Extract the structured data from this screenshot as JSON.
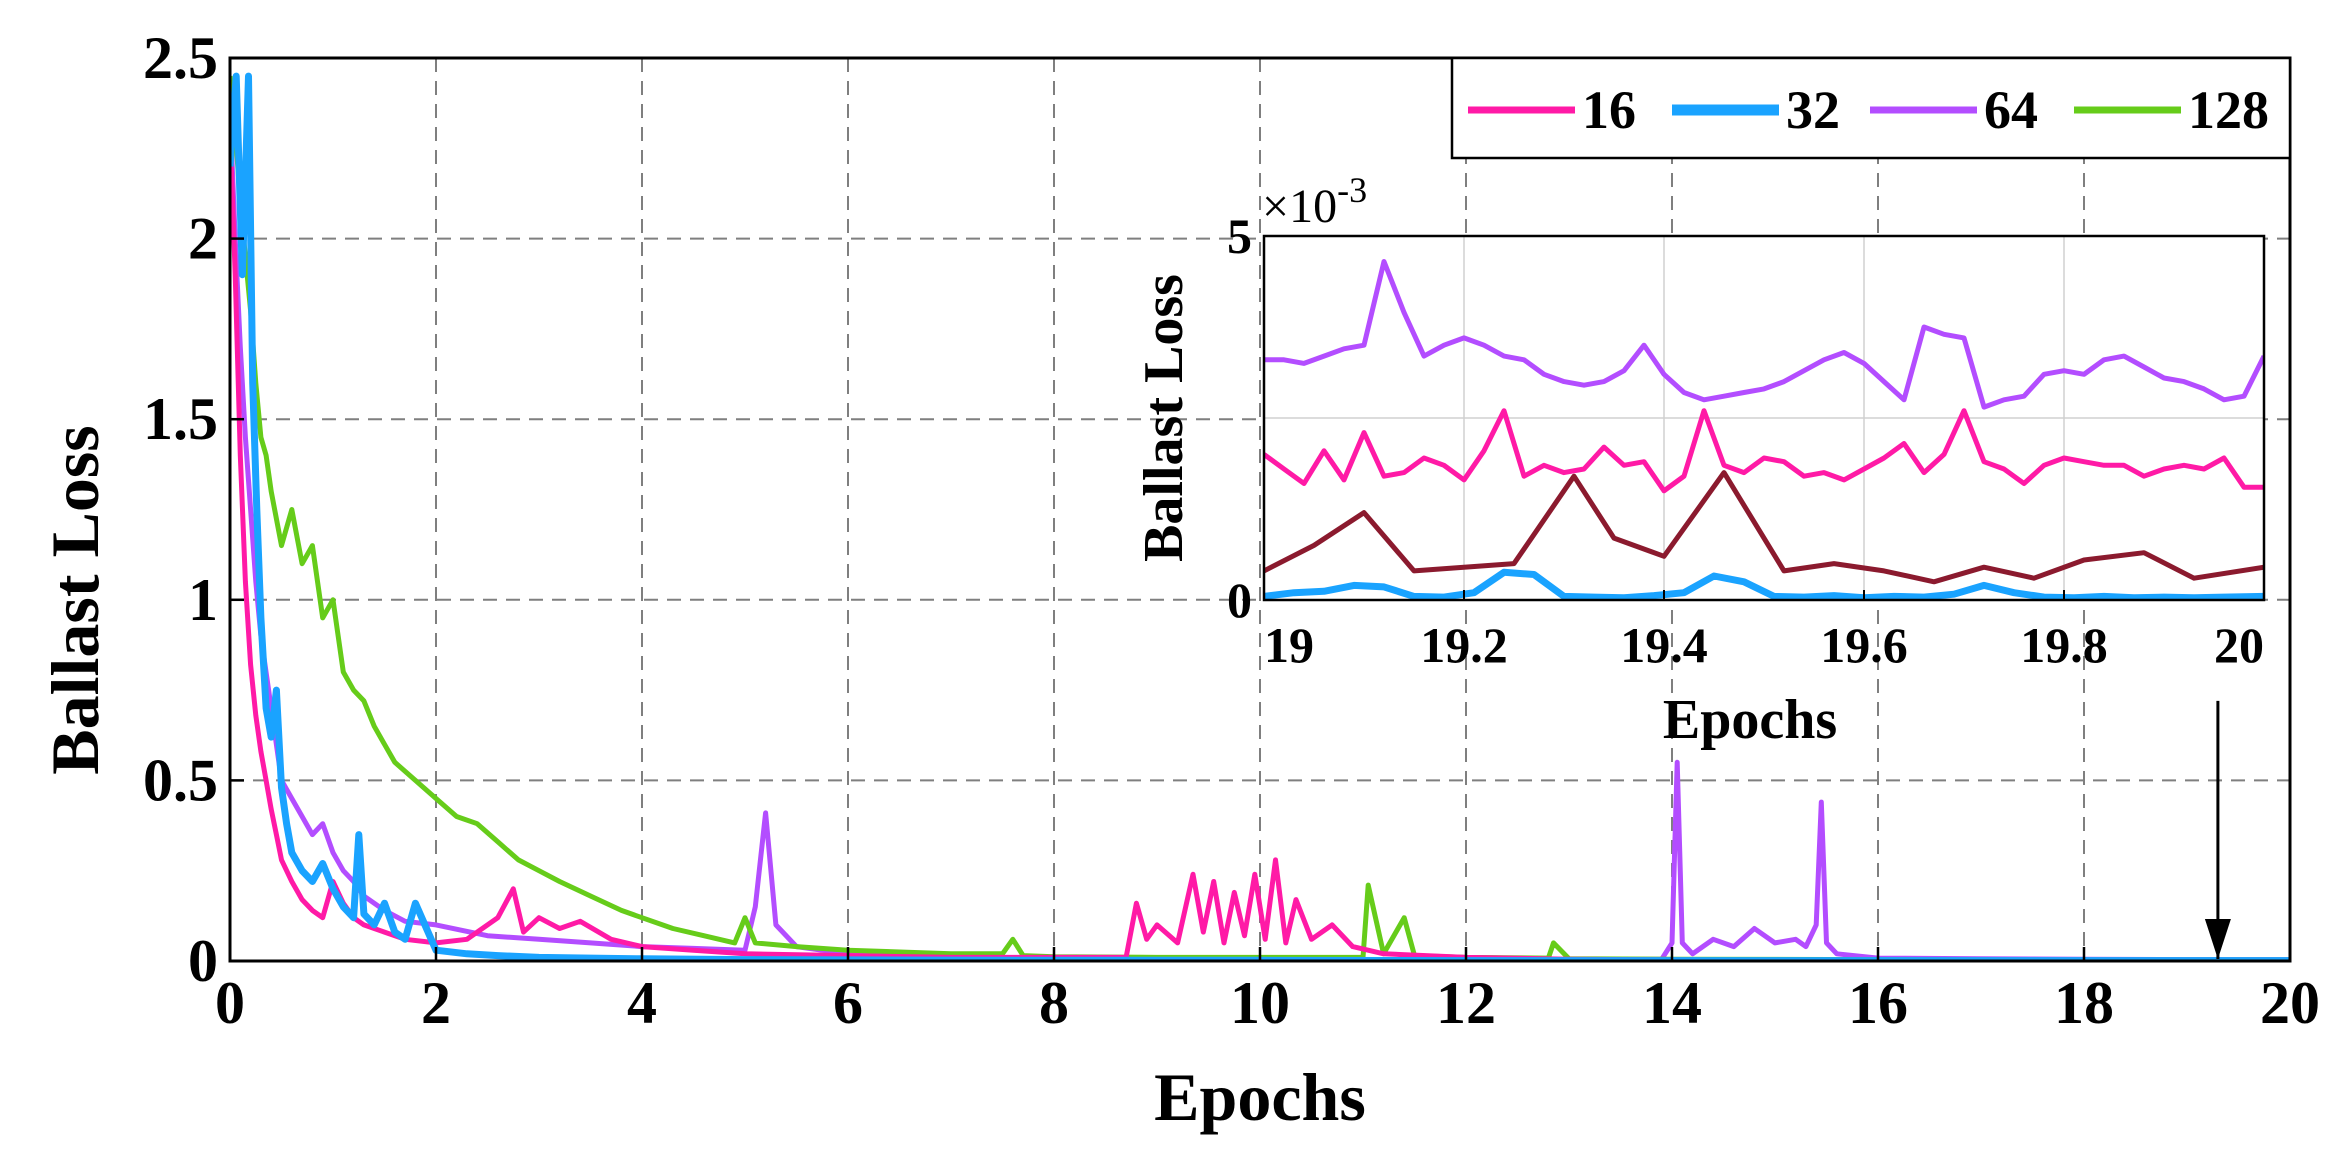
{
  "chart_data": [
    {
      "type": "line",
      "title": "",
      "xlabel": "Epochs",
      "ylabel": "Ballast Loss",
      "xlim": [
        0,
        20
      ],
      "ylim": [
        0,
        2.5
      ],
      "x_ticks": [
        "0",
        "2",
        "4",
        "6",
        "8",
        "10",
        "12",
        "14",
        "16",
        "18",
        "20"
      ],
      "y_ticks": [
        "0",
        "0.5",
        "1",
        "1.5",
        "2",
        "2.5"
      ],
      "grid": true,
      "legend_position": "top-right",
      "series": [
        {
          "name": "16",
          "color": "#ff1aa6",
          "x": [
            0,
            0.05,
            0.1,
            0.15,
            0.2,
            0.25,
            0.3,
            0.35,
            0.4,
            0.45,
            0.5,
            0.6,
            0.7,
            0.8,
            0.9,
            1.0,
            1.1,
            1.2,
            1.3,
            1.5,
            1.7,
            2.0,
            2.3,
            2.6,
            2.75,
            2.85,
            3.0,
            3.2,
            3.4,
            3.7,
            4.0,
            4.5,
            5.0,
            6.0,
            7.0,
            8.0,
            8.7,
            8.8,
            8.9,
            9.0,
            9.2,
            9.35,
            9.45,
            9.55,
            9.65,
            9.75,
            9.85,
            9.95,
            10.05,
            10.15,
            10.25,
            10.35,
            10.5,
            10.7,
            10.9,
            11.2,
            12.0,
            13.0,
            14.0,
            15.0,
            16.0,
            17.0,
            18.0,
            19.0,
            20.0
          ],
          "y": [
            2.3,
            1.9,
            1.4,
            1.05,
            0.82,
            0.68,
            0.58,
            0.5,
            0.42,
            0.35,
            0.28,
            0.22,
            0.17,
            0.14,
            0.12,
            0.22,
            0.16,
            0.12,
            0.1,
            0.08,
            0.06,
            0.05,
            0.06,
            0.12,
            0.2,
            0.08,
            0.12,
            0.09,
            0.11,
            0.06,
            0.04,
            0.03,
            0.02,
            0.015,
            0.01,
            0.01,
            0.01,
            0.16,
            0.06,
            0.1,
            0.05,
            0.24,
            0.08,
            0.22,
            0.05,
            0.19,
            0.07,
            0.24,
            0.06,
            0.28,
            0.05,
            0.17,
            0.06,
            0.1,
            0.04,
            0.02,
            0.01,
            0.005,
            0.003,
            0.002,
            0.002,
            0.002,
            0.002,
            0.002,
            0.002
          ]
        },
        {
          "name": "32",
          "color": "#1aa3ff",
          "x": [
            0,
            0.06,
            0.12,
            0.18,
            0.22,
            0.26,
            0.3,
            0.35,
            0.4,
            0.45,
            0.5,
            0.55,
            0.6,
            0.7,
            0.8,
            0.9,
            1.0,
            1.1,
            1.2,
            1.25,
            1.3,
            1.4,
            1.5,
            1.6,
            1.7,
            1.8,
            2.0,
            2.3,
            2.6,
            3.0,
            3.5,
            4.0,
            5.0,
            6.0,
            8.0,
            10.0,
            12.0,
            14.0,
            16.0,
            18.0,
            20.0
          ],
          "y": [
            2.2,
            2.45,
            1.9,
            2.45,
            1.6,
            1.25,
            0.95,
            0.7,
            0.62,
            0.75,
            0.48,
            0.38,
            0.3,
            0.25,
            0.22,
            0.27,
            0.2,
            0.15,
            0.12,
            0.35,
            0.13,
            0.1,
            0.16,
            0.08,
            0.06,
            0.16,
            0.03,
            0.02,
            0.015,
            0.01,
            0.008,
            0.006,
            0.004,
            0.003,
            0.002,
            0.002,
            0.001,
            0.001,
            0.001,
            0.001,
            0.001
          ]
        },
        {
          "name": "64",
          "color": "#b34dff",
          "x": [
            0,
            0.05,
            0.1,
            0.15,
            0.2,
            0.25,
            0.3,
            0.4,
            0.5,
            0.6,
            0.7,
            0.8,
            0.9,
            1.0,
            1.1,
            1.2,
            1.3,
            1.5,
            1.7,
            2.0,
            2.5,
            3.0,
            3.5,
            4.0,
            4.5,
            5.0,
            5.1,
            5.2,
            5.3,
            5.5,
            6.0,
            7.0,
            8.0,
            9.0,
            10.0,
            11.0,
            12.0,
            13.0,
            13.9,
            14.0,
            14.05,
            14.1,
            14.2,
            14.4,
            14.6,
            14.8,
            15.0,
            15.2,
            15.3,
            15.4,
            15.45,
            15.5,
            15.6,
            16.0,
            17.0,
            18.0,
            19.0,
            20.0
          ],
          "y": [
            2.35,
            2.0,
            1.7,
            1.45,
            1.25,
            1.05,
            0.9,
            0.7,
            0.5,
            0.45,
            0.4,
            0.35,
            0.38,
            0.3,
            0.25,
            0.22,
            0.18,
            0.14,
            0.11,
            0.1,
            0.07,
            0.06,
            0.05,
            0.04,
            0.035,
            0.03,
            0.15,
            0.41,
            0.1,
            0.04,
            0.02,
            0.01,
            0.008,
            0.006,
            0.005,
            0.004,
            0.004,
            0.004,
            0.005,
            0.05,
            0.55,
            0.05,
            0.02,
            0.06,
            0.04,
            0.09,
            0.05,
            0.06,
            0.04,
            0.1,
            0.44,
            0.05,
            0.02,
            0.008,
            0.006,
            0.005,
            0.004,
            0.004
          ]
        },
        {
          "name": "128",
          "color": "#66cc1a",
          "x": [
            0,
            0.05,
            0.1,
            0.15,
            0.2,
            0.25,
            0.3,
            0.35,
            0.4,
            0.5,
            0.6,
            0.7,
            0.8,
            0.9,
            1.0,
            1.1,
            1.2,
            1.3,
            1.4,
            1.5,
            1.6,
            1.8,
            2.0,
            2.2,
            2.4,
            2.6,
            2.8,
            3.0,
            3.2,
            3.5,
            3.8,
            4.0,
            4.3,
            4.6,
            4.9,
            5.0,
            5.1,
            5.5,
            6.0,
            7.0,
            7.5,
            7.6,
            7.7,
            8.0,
            9.0,
            10.0,
            10.9,
            11.0,
            11.05,
            11.2,
            11.4,
            11.5,
            12.0,
            12.8,
            12.85,
            13.0,
            14.0,
            16.0,
            18.0,
            20.0
          ],
          "y": [
            2.45,
            2.3,
            2.1,
            1.95,
            1.8,
            1.6,
            1.45,
            1.4,
            1.3,
            1.15,
            1.25,
            1.1,
            1.15,
            0.95,
            1.0,
            0.8,
            0.75,
            0.72,
            0.65,
            0.6,
            0.55,
            0.5,
            0.45,
            0.4,
            0.38,
            0.33,
            0.28,
            0.25,
            0.22,
            0.18,
            0.14,
            0.12,
            0.09,
            0.07,
            0.05,
            0.12,
            0.05,
            0.04,
            0.03,
            0.02,
            0.02,
            0.06,
            0.015,
            0.012,
            0.01,
            0.01,
            0.01,
            0.01,
            0.21,
            0.02,
            0.12,
            0.015,
            0.01,
            0.008,
            0.05,
            0.006,
            0.005,
            0.004,
            0.003,
            0.003
          ]
        }
      ],
      "annotation_arrow": {
        "x": 19.3,
        "y_from": 0.72,
        "y_to": 0.0
      }
    },
    {
      "type": "line",
      "title": "",
      "xlabel": "Epochs",
      "ylabel": "Ballast Loss",
      "scale_label": "×10-3",
      "scale_prefix": "×10",
      "scale_exponent": "-3",
      "xlim": [
        19,
        20
      ],
      "ylim": [
        0,
        5
      ],
      "x_ticks": [
        "19",
        "19.2",
        "19.4",
        "19.6",
        "19.8",
        "20"
      ],
      "y_ticks": [
        "0",
        "5"
      ],
      "grid": true,
      "series": [
        {
          "name": "16",
          "color": "#ff1aa6",
          "x": [
            19.0,
            19.02,
            19.04,
            19.06,
            19.08,
            19.1,
            19.12,
            19.14,
            19.16,
            19.18,
            19.2,
            19.22,
            19.24,
            19.26,
            19.28,
            19.3,
            19.32,
            19.34,
            19.36,
            19.38,
            19.4,
            19.42,
            19.44,
            19.46,
            19.48,
            19.5,
            19.52,
            19.54,
            19.56,
            19.58,
            19.6,
            19.62,
            19.64,
            19.66,
            19.68,
            19.7,
            19.72,
            19.74,
            19.76,
            19.78,
            19.8,
            19.82,
            19.84,
            19.86,
            19.88,
            19.9,
            19.92,
            19.94,
            19.96,
            19.98,
            20.0
          ],
          "y": [
            2.0,
            1.8,
            1.6,
            2.05,
            1.65,
            2.3,
            1.7,
            1.75,
            1.95,
            1.85,
            1.65,
            2.05,
            2.6,
            1.7,
            1.85,
            1.75,
            1.8,
            2.1,
            1.85,
            1.9,
            1.5,
            1.7,
            2.6,
            1.85,
            1.75,
            1.95,
            1.9,
            1.7,
            1.75,
            1.65,
            1.8,
            1.95,
            2.15,
            1.75,
            2.0,
            2.6,
            1.9,
            1.8,
            1.6,
            1.85,
            1.95,
            1.9,
            1.85,
            1.85,
            1.7,
            1.8,
            1.85,
            1.8,
            1.95,
            1.55,
            1.55
          ]
        },
        {
          "name": "32",
          "color": "#1aa3ff",
          "x": [
            19.0,
            19.03,
            19.06,
            19.09,
            19.12,
            19.15,
            19.18,
            19.21,
            19.24,
            19.27,
            19.3,
            19.33,
            19.36,
            19.39,
            19.42,
            19.45,
            19.48,
            19.51,
            19.54,
            19.57,
            19.6,
            19.63,
            19.66,
            19.69,
            19.72,
            19.75,
            19.78,
            19.81,
            19.84,
            19.87,
            19.9,
            19.93,
            19.96,
            20.0
          ],
          "y": [
            0.05,
            0.1,
            0.12,
            0.2,
            0.18,
            0.05,
            0.04,
            0.1,
            0.38,
            0.35,
            0.05,
            0.04,
            0.03,
            0.06,
            0.1,
            0.33,
            0.25,
            0.05,
            0.04,
            0.06,
            0.03,
            0.05,
            0.04,
            0.08,
            0.2,
            0.1,
            0.04,
            0.03,
            0.05,
            0.03,
            0.04,
            0.03,
            0.04,
            0.05
          ]
        },
        {
          "name": "64",
          "color": "#b34dff",
          "x": [
            19.0,
            19.02,
            19.04,
            19.06,
            19.08,
            19.1,
            19.12,
            19.14,
            19.16,
            19.18,
            19.2,
            19.22,
            19.24,
            19.26,
            19.28,
            19.3,
            19.32,
            19.34,
            19.36,
            19.38,
            19.4,
            19.42,
            19.44,
            19.46,
            19.48,
            19.5,
            19.52,
            19.54,
            19.56,
            19.58,
            19.6,
            19.62,
            19.64,
            19.66,
            19.68,
            19.7,
            19.72,
            19.74,
            19.76,
            19.78,
            19.8,
            19.82,
            19.84,
            19.86,
            19.88,
            19.9,
            19.92,
            19.94,
            19.96,
            19.98,
            20.0
          ],
          "y": [
            3.3,
            3.3,
            3.25,
            3.35,
            3.45,
            3.5,
            4.65,
            3.95,
            3.35,
            3.5,
            3.6,
            3.5,
            3.35,
            3.3,
            3.1,
            3.0,
            2.95,
            3.0,
            3.15,
            3.5,
            3.1,
            2.85,
            2.75,
            2.8,
            2.85,
            2.9,
            3.0,
            3.15,
            3.3,
            3.4,
            3.25,
            3.0,
            2.75,
            3.75,
            3.65,
            3.6,
            2.65,
            2.75,
            2.8,
            3.1,
            3.15,
            3.1,
            3.3,
            3.35,
            3.2,
            3.05,
            3.0,
            2.9,
            2.75,
            2.8,
            3.35
          ]
        },
        {
          "name": "128",
          "color": "#8b1a2e",
          "x": [
            19.0,
            19.05,
            19.1,
            19.15,
            19.2,
            19.25,
            19.31,
            19.35,
            19.4,
            19.46,
            19.52,
            19.57,
            19.62,
            19.67,
            19.72,
            19.77,
            19.82,
            19.88,
            19.93,
            20.0
          ],
          "y": [
            0.4,
            0.75,
            1.2,
            0.4,
            0.45,
            0.5,
            1.7,
            0.85,
            0.6,
            1.75,
            0.4,
            0.5,
            0.4,
            0.25,
            0.45,
            0.3,
            0.55,
            0.65,
            0.3,
            0.45
          ]
        }
      ]
    }
  ]
}
